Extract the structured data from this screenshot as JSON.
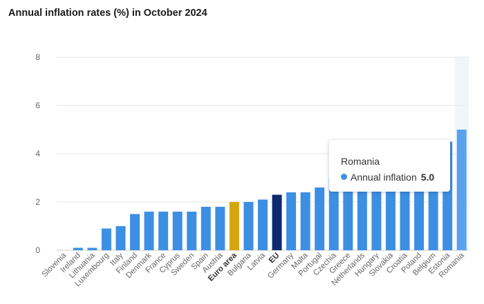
{
  "title": "Annual inflation rates (%) in October 2024",
  "colors": {
    "default": "#3d8fe3",
    "euro_area": "#d4a50e",
    "eu": "#0d2a6e",
    "highlight": "#5aa2ee",
    "grid": "#e6e6e6",
    "axis_text": "#666666"
  },
  "tooltip": {
    "name": "Romania",
    "series_label": "Annual inflation",
    "value": "5.0"
  },
  "chart_data": {
    "type": "bar",
    "title": "Annual inflation rates (%) in October 2024",
    "xlabel": "",
    "ylabel": "",
    "ylim": [
      0,
      8
    ],
    "yticks": [
      0,
      2,
      4,
      6,
      8
    ],
    "grid": true,
    "legend": "none",
    "categories": [
      "Slovenia",
      "Ireland",
      "Lithuania",
      "Luxembourg",
      "Italy",
      "Finland",
      "Denmark",
      "France",
      "Cyprus",
      "Sweden",
      "Spain",
      "Austria",
      "Euro area",
      "Bulgaria",
      "Latvia",
      "EU",
      "Germany",
      "Malta",
      "Portugal",
      "Czechia",
      "Greece",
      "Netherlands",
      "Hungary",
      "Slovakia",
      "Croatia",
      "Poland",
      "Belgium",
      "Estonia",
      "Romania"
    ],
    "bold_categories": [
      "Euro area",
      "EU"
    ],
    "values": [
      0.0,
      0.1,
      0.1,
      0.9,
      1.0,
      1.5,
      1.6,
      1.6,
      1.6,
      1.6,
      1.8,
      1.8,
      2.0,
      2.0,
      2.1,
      2.3,
      2.4,
      2.4,
      2.6,
      3.0,
      3.0,
      3.4,
      3.5,
      3.8,
      3.9,
      4.2,
      4.3,
      4.5,
      5.0
    ],
    "bar_colors": {
      "Euro area": "#d4a50e",
      "EU": "#0d2a6e",
      "Romania": "#5aa2ee"
    },
    "highlighted_category": "Romania",
    "series": [
      {
        "name": "Annual inflation"
      }
    ]
  }
}
